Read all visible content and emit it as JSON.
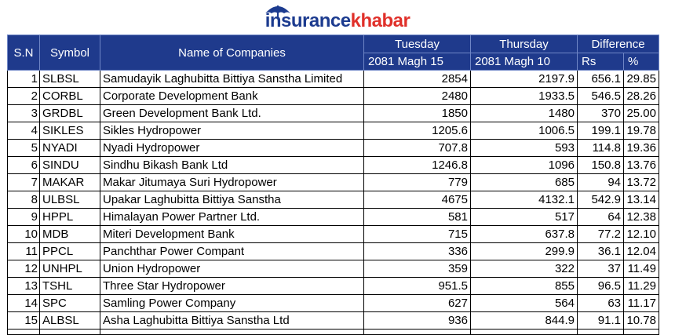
{
  "logo": {
    "part1": "insurance",
    "part2": "khabar",
    "brand_blue": "#1c3b8f",
    "brand_red": "#e0302a",
    "icon": "umbrella-icon"
  },
  "header": {
    "sn": "S.N",
    "symbol": "Symbol",
    "name": "Name of Companies",
    "day1": "Tuesday",
    "date1": "2081 Magh 15",
    "day2": "Thursday",
    "date2": "2081 Magh 10",
    "difference": "Difference",
    "rs": "Rs",
    "pct": "%"
  },
  "colors": {
    "header_bg": "#1f3a8c",
    "header_text": "#ffffff"
  },
  "rows": [
    {
      "sn": "1",
      "symbol": "SLBSL",
      "name": "Samudayik Laghubitta Bittiya Sanstha Limited",
      "tue": "2854",
      "thu": "2197.9",
      "rs": "656.1",
      "pct": "29.85"
    },
    {
      "sn": "2",
      "symbol": "CORBL",
      "name": "Corporate Development Bank",
      "tue": "2480",
      "thu": "1933.5",
      "rs": "546.5",
      "pct": "28.26"
    },
    {
      "sn": "3",
      "symbol": "GRDBL",
      "name": "Green Development Bank Ltd.",
      "tue": "1850",
      "thu": "1480",
      "rs": "370",
      "pct": "25.00"
    },
    {
      "sn": "4",
      "symbol": "SIKLES",
      "name": "Sikles Hydropower",
      "tue": "1205.6",
      "thu": "1006.5",
      "rs": "199.1",
      "pct": "19.78"
    },
    {
      "sn": "5",
      "symbol": "NYADI",
      "name": "Nyadi Hydropower",
      "tue": "707.8",
      "thu": "593",
      "rs": "114.8",
      "pct": "19.36"
    },
    {
      "sn": "6",
      "symbol": "SINDU",
      "name": "Sindhu Bikash Bank Ltd",
      "tue": "1246.8",
      "thu": "1096",
      "rs": "150.8",
      "pct": "13.76"
    },
    {
      "sn": "7",
      "symbol": "MAKAR",
      "name": "Makar Jitumaya Suri Hydropower",
      "tue": "779",
      "thu": "685",
      "rs": "94",
      "pct": "13.72"
    },
    {
      "sn": "8",
      "symbol": "ULBSL",
      "name": "Upakar Laghubitta Bittiya Sanstha",
      "tue": "4675",
      "thu": "4132.1",
      "rs": "542.9",
      "pct": "13.14"
    },
    {
      "sn": "9",
      "symbol": "HPPL",
      "name": "Himalayan Power Partner Ltd.",
      "tue": "581",
      "thu": "517",
      "rs": "64",
      "pct": "12.38"
    },
    {
      "sn": "10",
      "symbol": "MDB",
      "name": "Miteri Development Bank",
      "tue": "715",
      "thu": "637.8",
      "rs": "77.2",
      "pct": "12.10"
    },
    {
      "sn": "11",
      "symbol": "PPCL",
      "name": "Panchthar Power Compant",
      "tue": "336",
      "thu": "299.9",
      "rs": "36.1",
      "pct": "12.04"
    },
    {
      "sn": "12",
      "symbol": "UNHPL",
      "name": "Union Hydropower",
      "tue": "359",
      "thu": "322",
      "rs": "37",
      "pct": "11.49"
    },
    {
      "sn": "13",
      "symbol": "TSHL",
      "name": "Three Star Hydropower",
      "tue": "951.5",
      "thu": "855",
      "rs": "96.5",
      "pct": "11.29"
    },
    {
      "sn": "14",
      "symbol": "SPC",
      "name": "Samling Power Company",
      "tue": "627",
      "thu": "564",
      "rs": "63",
      "pct": "11.17"
    },
    {
      "sn": "15",
      "symbol": "ALBSL",
      "name": "Asha Laghubitta Bittiya Sanstha Ltd",
      "tue": "936",
      "thu": "844.9",
      "rs": "91.1",
      "pct": "10.78"
    }
  ]
}
